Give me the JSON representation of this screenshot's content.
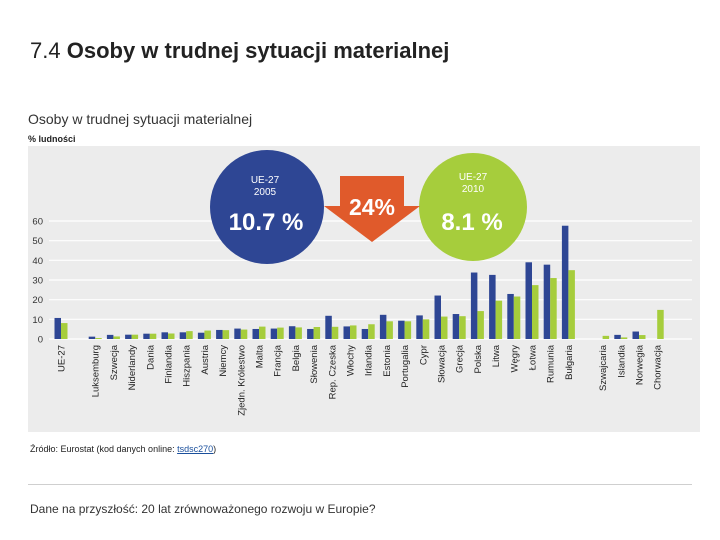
{
  "slide": {
    "number": "7.4",
    "title": "Osoby w trudnej sytuacji materialnej"
  },
  "source": {
    "prefix": "Źródło: Eurostat (kod danych online: ",
    "code": "tsdsc270",
    "suffix": ")"
  },
  "footer": "Dane na przyszłość: 20 lat zrównoważonego rozwoju w Europie?",
  "colors": {
    "bar_2005": "#2e4694",
    "bar_2010": "#a6cd3c",
    "arrow": "#e05a2b",
    "panel": "#ececec"
  },
  "chart_data": {
    "type": "bar",
    "title": "Osoby w trudnej sytuacji materialnej",
    "ylabel": "% ludności",
    "ylim": [
      0,
      60
    ],
    "yticks": [
      0,
      10,
      20,
      30,
      40,
      50,
      60
    ],
    "grid": true,
    "legend": "none",
    "categories": [
      "UE-27",
      "Luksemburg",
      "Szwecja",
      "Niderlandy",
      "Dania",
      "Finlandia",
      "Hiszpania",
      "Austria",
      "Niemcy",
      "Zjedn. Królestwo",
      "Malta",
      "Francja",
      "Belgia",
      "Słowenia",
      "Rep. Czeska",
      "Włochy",
      "Irlandia",
      "Estonia",
      "Portugalia",
      "Cypr",
      "Słowacja",
      "Grecja",
      "Polska",
      "Litwa",
      "Węgry",
      "Łotwa",
      "Rumunia",
      "Bułgaria",
      "Szwajcaria",
      "Islandia",
      "Norwegia",
      "Chorwacja"
    ],
    "groups": [
      1,
      27,
      4
    ],
    "series": [
      {
        "values": [
          10.7,
          1.2,
          2.1,
          2.2,
          2.7,
          3.4,
          3.4,
          3.2,
          4.6,
          5.3,
          5.1,
          5.3,
          6.5,
          5.1,
          11.8,
          6.4,
          5.1,
          12.3,
          9.3,
          12.0,
          22.1,
          12.7,
          33.8,
          32.6,
          22.9,
          39.0,
          37.8,
          57.6,
          null,
          2.1,
          3.8,
          null
        ]
      },
      {
        "values": [
          8.1,
          0.5,
          1.3,
          2.2,
          2.7,
          2.8,
          4.0,
          4.3,
          4.5,
          4.8,
          6.3,
          5.8,
          5.9,
          6.1,
          6.2,
          6.9,
          7.5,
          9.0,
          9.0,
          10.0,
          11.4,
          11.6,
          14.2,
          19.5,
          21.6,
          27.4,
          31.0,
          35.0,
          1.6,
          0.8,
          2.0,
          14.8
        ]
      }
    ],
    "annotations": [
      {
        "label": "UE-27\n2005",
        "value": "10.7 %"
      },
      {
        "value": "24%"
      },
      {
        "label": "UE-27\n2010",
        "value": "8.1 %"
      }
    ]
  }
}
